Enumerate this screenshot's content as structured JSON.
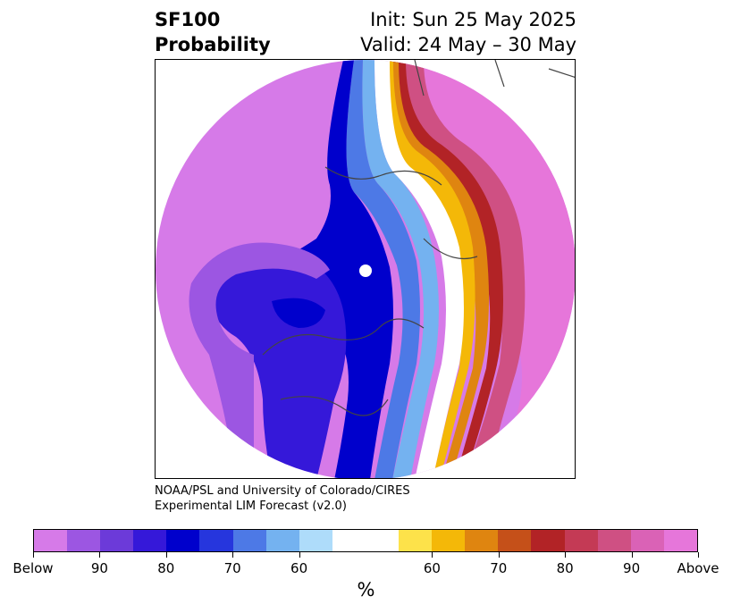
{
  "title": {
    "line1": "SF100",
    "line2": "Probability"
  },
  "init": {
    "line1": "Init: Sun 25 May 2025",
    "line2": "Valid: 24 May – 30 May"
  },
  "credit": {
    "line1": "NOAA/PSL and University of Colorado/CIRES",
    "line2": "Experimental LIM Forecast (v2.0)"
  },
  "colorbar": {
    "colors": [
      "#d67ae8",
      "#9c56e2",
      "#6c3ad9",
      "#3518d9",
      "#0000cc",
      "#2636dd",
      "#4d79e6",
      "#74b2f0",
      "#aedcfa",
      "#ffffff",
      "#ffffff",
      "#fde24a",
      "#f4b808",
      "#df8510",
      "#c55019",
      "#b22326",
      "#c43a55",
      "#cf5083",
      "#da62b6",
      "#e676da"
    ],
    "tick_labels": [
      "Below",
      "90",
      "80",
      "70",
      "60",
      "60",
      "70",
      "80",
      "90",
      "Above"
    ],
    "unit": "%"
  }
}
